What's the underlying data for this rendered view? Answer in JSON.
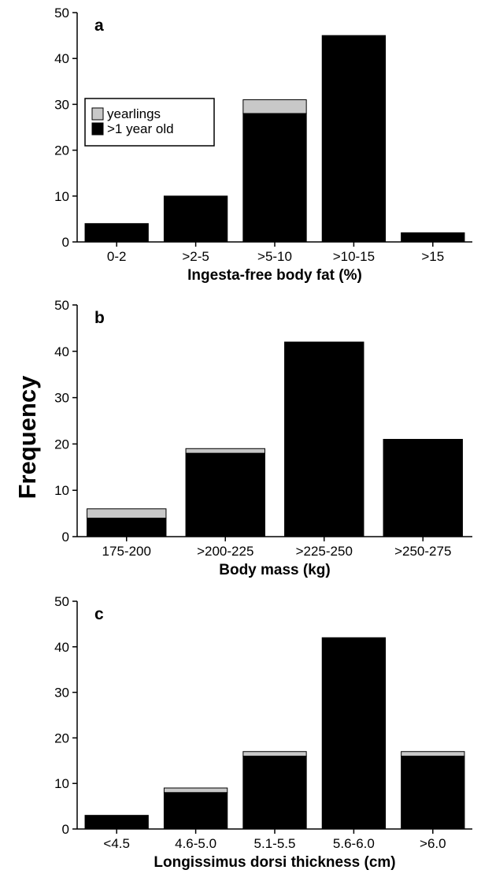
{
  "figure": {
    "ylabel": "Frequency",
    "colors": {
      "adults": "#000000",
      "yearlings": "#c8c8c8"
    },
    "legend": [
      {
        "series": "yearlings",
        "label": "yearlings"
      },
      {
        "series": "adults",
        "label": ">1 year old"
      }
    ],
    "legend_placement": "upper-left of panel a"
  },
  "chart_data": [
    {
      "type": "bar",
      "stacked": true,
      "panel": "a",
      "xlabel": "Ingesta-free body fat (%)",
      "ylabel": "Frequency",
      "ylim": [
        0,
        50
      ],
      "yticks": [
        0,
        10,
        20,
        30,
        40,
        50
      ],
      "categories": [
        "0-2",
        ">2-5",
        ">5-10",
        ">10-15",
        ">15"
      ],
      "series": [
        {
          "name": ">1 year old",
          "key": "adults",
          "values": [
            4,
            10,
            28,
            45,
            2
          ]
        },
        {
          "name": "yearlings",
          "key": "yearlings",
          "values": [
            0,
            0,
            3,
            0,
            0
          ]
        }
      ]
    },
    {
      "type": "bar",
      "stacked": true,
      "panel": "b",
      "xlabel": "Body mass (kg)",
      "ylabel": "Frequency",
      "ylim": [
        0,
        50
      ],
      "yticks": [
        0,
        10,
        20,
        30,
        40,
        50
      ],
      "categories": [
        "175-200",
        ">200-225",
        ">225-250",
        ">250-275"
      ],
      "series": [
        {
          "name": ">1 year old",
          "key": "adults",
          "values": [
            4,
            18,
            42,
            21
          ]
        },
        {
          "name": "yearlings",
          "key": "yearlings",
          "values": [
            2,
            1,
            0,
            0
          ]
        }
      ]
    },
    {
      "type": "bar",
      "stacked": true,
      "panel": "c",
      "xlabel": "Longissimus dorsi thickness (cm)",
      "ylabel": "Frequency",
      "ylim": [
        0,
        50
      ],
      "yticks": [
        0,
        10,
        20,
        30,
        40,
        50
      ],
      "categories": [
        "<4.5",
        "4.6-5.0",
        "5.1-5.5",
        "5.6-6.0",
        ">6.0"
      ],
      "series": [
        {
          "name": ">1 year old",
          "key": "adults",
          "values": [
            3,
            8,
            16,
            42,
            16
          ]
        },
        {
          "name": "yearlings",
          "key": "yearlings",
          "values": [
            0,
            1,
            1,
            0,
            1
          ]
        }
      ]
    }
  ]
}
